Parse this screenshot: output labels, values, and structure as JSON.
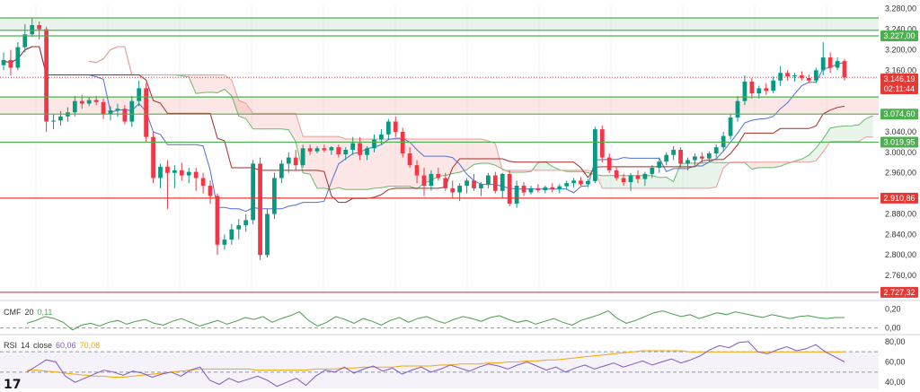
{
  "chart_data": {
    "type": "candlestick",
    "price_axis": {
      "ticks": [
        "3.280,00",
        "3.240,00",
        "3.200,00",
        "3.160,00",
        "3.040,00",
        "3.000,00",
        "2.960,00",
        "2.880,00",
        "2.840,00",
        "2.800,00",
        "2.760,00"
      ],
      "range": [
        2720,
        3290
      ]
    },
    "candles": [
      [
        3170,
        3195,
        3160,
        3180
      ],
      [
        3180,
        3200,
        3150,
        3165
      ],
      [
        3165,
        3215,
        3160,
        3205
      ],
      [
        3205,
        3250,
        3195,
        3230
      ],
      [
        3230,
        3262,
        3225,
        3248
      ],
      [
        3248,
        3255,
        3220,
        3240
      ],
      [
        3240,
        3245,
        3040,
        3060
      ],
      [
        3060,
        3075,
        3045,
        3062
      ],
      [
        3062,
        3080,
        3052,
        3070
      ],
      [
        3070,
        3088,
        3060,
        3078
      ],
      [
        3078,
        3110,
        3070,
        3100
      ],
      [
        3100,
        3112,
        3085,
        3095
      ],
      [
        3095,
        3108,
        3090,
        3102
      ],
      [
        3102,
        3110,
        3092,
        3098
      ],
      [
        3098,
        3105,
        3065,
        3075
      ],
      [
        3075,
        3090,
        3062,
        3082
      ],
      [
        3082,
        3095,
        3070,
        3085
      ],
      [
        3085,
        3092,
        3055,
        3060
      ],
      [
        3060,
        3110,
        3050,
        3100
      ],
      [
        3100,
        3140,
        3090,
        3125
      ],
      [
        3125,
        3135,
        3020,
        3030
      ],
      [
        3030,
        3040,
        2940,
        2950
      ],
      [
        2950,
        2978,
        2930,
        2972
      ],
      [
        2972,
        2985,
        2890,
        2960
      ],
      [
        2960,
        2975,
        2930,
        2965
      ],
      [
        2965,
        2980,
        2945,
        2955
      ],
      [
        2955,
        2970,
        2940,
        2962
      ],
      [
        2962,
        2970,
        2925,
        2950
      ],
      [
        2950,
        2960,
        2920,
        2935
      ],
      [
        2935,
        2945,
        2900,
        2915
      ],
      [
        2915,
        2920,
        2800,
        2820
      ],
      [
        2820,
        2840,
        2810,
        2830
      ],
      [
        2830,
        2860,
        2820,
        2850
      ],
      [
        2850,
        2870,
        2830,
        2858
      ],
      [
        2858,
        2880,
        2845,
        2868
      ],
      [
        2868,
        2985,
        2860,
        2978
      ],
      [
        2978,
        2990,
        2790,
        2800
      ],
      [
        2800,
        2890,
        2795,
        2880
      ],
      [
        2880,
        2960,
        2870,
        2950
      ],
      [
        2950,
        2985,
        2940,
        2978
      ],
      [
        2978,
        3000,
        2960,
        2990
      ],
      [
        2990,
        3005,
        2965,
        2975
      ],
      [
        2975,
        3015,
        2970,
        3008
      ],
      [
        3008,
        3015,
        2995,
        3002
      ],
      [
        3002,
        3012,
        2998,
        3008
      ],
      [
        3008,
        3015,
        3000,
        3004
      ],
      [
        3004,
        3012,
        2995,
        3010
      ],
      [
        3010,
        3015,
        2990,
        2996
      ],
      [
        2996,
        3010,
        2985,
        3005
      ],
      [
        3005,
        3030,
        2995,
        3018
      ],
      [
        3018,
        3030,
        2985,
        2995
      ],
      [
        2995,
        3012,
        2985,
        3008
      ],
      [
        3008,
        3035,
        3000,
        3025
      ],
      [
        3025,
        3045,
        3015,
        3035
      ],
      [
        3035,
        3065,
        3025,
        3060
      ],
      [
        3060,
        3070,
        3030,
        3040
      ],
      [
        3040,
        3048,
        2990,
        2998
      ],
      [
        2998,
        3010,
        2970,
        2975
      ],
      [
        2975,
        2985,
        2940,
        2955
      ],
      [
        2955,
        2970,
        2915,
        2935
      ],
      [
        2935,
        2965,
        2925,
        2958
      ],
      [
        2958,
        2970,
        2945,
        2950
      ],
      [
        2950,
        2960,
        2925,
        2930
      ],
      [
        2930,
        2945,
        2910,
        2922
      ],
      [
        2922,
        2940,
        2905,
        2935
      ],
      [
        2935,
        2950,
        2920,
        2945
      ],
      [
        2945,
        2958,
        2925,
        2930
      ],
      [
        2930,
        2942,
        2915,
        2938
      ],
      [
        2938,
        2960,
        2930,
        2955
      ],
      [
        2955,
        2962,
        2920,
        2925
      ],
      [
        2925,
        2960,
        2910,
        2958
      ],
      [
        2958,
        2965,
        2895,
        2900
      ],
      [
        2900,
        2945,
        2892,
        2935
      ],
      [
        2935,
        2942,
        2915,
        2922
      ],
      [
        2922,
        2935,
        2918,
        2930
      ],
      [
        2930,
        2938,
        2922,
        2926
      ],
      [
        2926,
        2935,
        2920,
        2932
      ],
      [
        2932,
        2940,
        2922,
        2928
      ],
      [
        2928,
        2938,
        2920,
        2934
      ],
      [
        2934,
        2945,
        2928,
        2940
      ],
      [
        2940,
        2950,
        2932,
        2945
      ],
      [
        2945,
        2952,
        2935,
        2938
      ],
      [
        2938,
        2948,
        2932,
        2944
      ],
      [
        2944,
        3050,
        2940,
        3045
      ],
      [
        3045,
        3052,
        2980,
        2990
      ],
      [
        2990,
        2998,
        2960,
        2965
      ],
      [
        2965,
        2972,
        2945,
        2950
      ],
      [
        2950,
        2958,
        2935,
        2942
      ],
      [
        2942,
        2960,
        2925,
        2955
      ],
      [
        2955,
        2965,
        2940,
        2948
      ],
      [
        2948,
        2962,
        2935,
        2958
      ],
      [
        2958,
        2975,
        2950,
        2970
      ],
      [
        2970,
        2990,
        2960,
        2982
      ],
      [
        2982,
        3000,
        2975,
        2995
      ],
      [
        2995,
        3012,
        2985,
        3005
      ],
      [
        3005,
        3010,
        2970,
        2978
      ],
      [
        2978,
        2990,
        2965,
        2985
      ],
      [
        2985,
        2998,
        2975,
        2992
      ],
      [
        2992,
        3000,
        2980,
        2988
      ],
      [
        2988,
        3002,
        2982,
        2998
      ],
      [
        2998,
        3015,
        2990,
        3010
      ],
      [
        3010,
        3040,
        3002,
        3032
      ],
      [
        3032,
        3075,
        3025,
        3068
      ],
      [
        3068,
        3110,
        3060,
        3100
      ],
      [
        3100,
        3150,
        3092,
        3138
      ],
      [
        3138,
        3145,
        3105,
        3115
      ],
      [
        3115,
        3130,
        3105,
        3125
      ],
      [
        3125,
        3135,
        3112,
        3120
      ],
      [
        3120,
        3148,
        3115,
        3140
      ],
      [
        3140,
        3168,
        3130,
        3155
      ],
      [
        3155,
        3160,
        3140,
        3148
      ],
      [
        3148,
        3155,
        3138,
        3150
      ],
      [
        3150,
        3158,
        3140,
        3145
      ],
      [
        3145,
        3152,
        3135,
        3140
      ],
      [
        3140,
        3165,
        3135,
        3160
      ],
      [
        3160,
        3215,
        3150,
        3185
      ],
      [
        3185,
        3195,
        3155,
        3165
      ],
      [
        3165,
        3185,
        3160,
        3178
      ],
      [
        3178,
        3182,
        3140,
        3146
      ]
    ],
    "levels": [
      {
        "value": 3227.0,
        "label": "3.227,00",
        "color": "#4caf50"
      },
      {
        "value": 3074.6,
        "label": "3.074,60",
        "color": "#4caf50"
      },
      {
        "value": 3019.95,
        "label": "3.019,95",
        "color": "#4caf50"
      },
      {
        "value": 2910.86,
        "label": "2.910,86",
        "color": "#e53935"
      },
      {
        "value": 2727.32,
        "label": "2.727,32",
        "color": "#e53935"
      }
    ],
    "extra_levels": [
      {
        "value": 3262,
        "color": "#4caf50"
      },
      {
        "value": 3238,
        "color": "#4caf50"
      },
      {
        "value": 3108,
        "color": "#4caf50"
      }
    ],
    "zones": [
      {
        "top": 3262,
        "bottom": 3238,
        "color": "#4caf50"
      },
      {
        "top": 3108,
        "bottom": 3074.6,
        "color": "#e53935"
      }
    ],
    "current_price": {
      "label": "3.146,19",
      "countdown": "02:11:44",
      "value": 3146.19
    },
    "cmf": {
      "name": "CMF",
      "length": "20",
      "value": "0,11",
      "ticks": [
        "0,20",
        "0,00"
      ],
      "values": [
        0.05,
        0.08,
        0.12,
        0.1,
        0.06,
        -0.02,
        0.03,
        0.05,
        0.02,
        0.06,
        0.08,
        0.04,
        0.07,
        0.09,
        0.05,
        0.03,
        0.07,
        0.1,
        0.06,
        0.02,
        0.05,
        0.08,
        0.04,
        0.07,
        0.11,
        0.09,
        0.12,
        0.06,
        0.1,
        0.13,
        0.17,
        0.08,
        0.02,
        0.06,
        0.12,
        0.09,
        0.05,
        0.1,
        0.07,
        0.03,
        0.08,
        0.11,
        0.06,
        0.1,
        0.12,
        0.08,
        0.05,
        0.09,
        0.12,
        0.1,
        0.07,
        0.11,
        0.13,
        0.09,
        0.06,
        0.08,
        0.04,
        0.07,
        0.1,
        0.06,
        0.03,
        0.08,
        0.11,
        0.14,
        0.18,
        0.1,
        0.05,
        0.08,
        0.12,
        0.16,
        0.18,
        0.15,
        0.12,
        0.14,
        0.1,
        0.13,
        0.16,
        0.14,
        0.17,
        0.15,
        0.13,
        0.11,
        0.14,
        0.12,
        0.1,
        0.12,
        0.13,
        0.11,
        0.1,
        0.11,
        0.11
      ]
    },
    "rsi": {
      "name": "RSI",
      "length": "14",
      "source": "close",
      "value": "60,06",
      "ma_value": "70,08",
      "ticks": [
        "80,00",
        "60,00",
        "40,00"
      ],
      "values": [
        50,
        56,
        62,
        60,
        46,
        40,
        44,
        48,
        52,
        50,
        47,
        51,
        49,
        45,
        48,
        50,
        46,
        52,
        55,
        42,
        38,
        44,
        40,
        43,
        46,
        42,
        36,
        40,
        44,
        37,
        46,
        52,
        50,
        55,
        49,
        53,
        56,
        51,
        54,
        48,
        52,
        55,
        50,
        53,
        57,
        54,
        51,
        55,
        58,
        56,
        53,
        57,
        60,
        56,
        52,
        55,
        50,
        54,
        57,
        53,
        56,
        59,
        55,
        58,
        61,
        57,
        60,
        63,
        59,
        62,
        66,
        72,
        76,
        74,
        79,
        80,
        70,
        68,
        72,
        75,
        71,
        73,
        77,
        70,
        65,
        60
      ],
      "ma": [
        52,
        52,
        51,
        50,
        49,
        48,
        47,
        46,
        46,
        45,
        45,
        46,
        47,
        48,
        49,
        50,
        51,
        52,
        53,
        53,
        53,
        53,
        53,
        53,
        52,
        52,
        52,
        52,
        52,
        52,
        53,
        53,
        53,
        54,
        54,
        55,
        55,
        55,
        55,
        56,
        56,
        56,
        56,
        57,
        57,
        58,
        58,
        58,
        59,
        59,
        60,
        60,
        61,
        61,
        62,
        62,
        63,
        64,
        65,
        66,
        67,
        68,
        69,
        70,
        71,
        71,
        71,
        71,
        71,
        70,
        70,
        70,
        70,
        70,
        70,
        70,
        70,
        70,
        70,
        70,
        70,
        70,
        70,
        70,
        70,
        70
      ]
    }
  }
}
